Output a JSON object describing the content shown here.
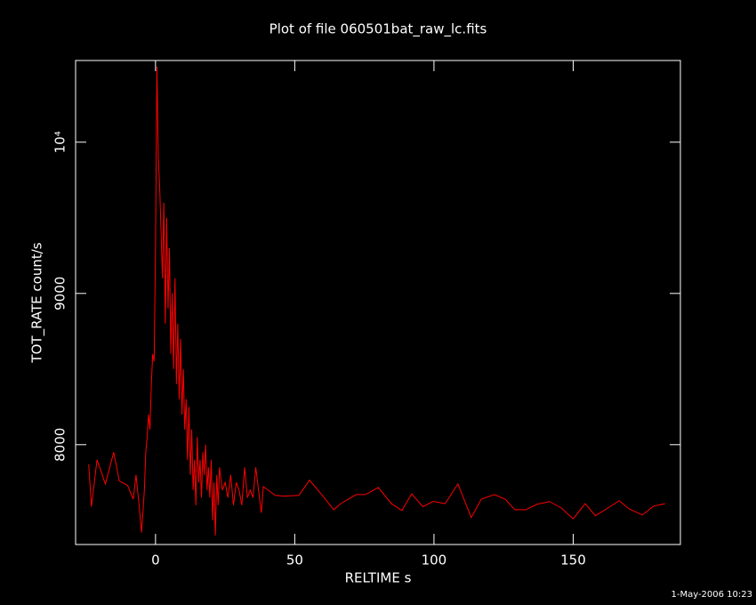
{
  "chart_data": {
    "type": "line",
    "title": "Plot of file 060501bat_raw_lc.fits",
    "x_label": "RELTIME  s",
    "y_label": "TOT_RATE  count/s",
    "footer": "1-May-2006 10:23",
    "xlim": [
      -28.7,
      188.5
    ],
    "ylim": [
      7340,
      10540
    ],
    "xticks": [
      0,
      50,
      100,
      150
    ],
    "yticks": [
      8000,
      9000,
      {
        "value": 10000,
        "label": "10⁴"
      }
    ],
    "series": [
      {
        "name": "TOT_RATE",
        "color": "#ff0000",
        "x": [
          -24,
          -23,
          -21,
          -18,
          -15,
          -13,
          -10,
          -8,
          -7,
          -6,
          -5,
          -4,
          -3.5,
          -3,
          -2.5,
          -2,
          -1.5,
          -1,
          -0.5,
          0,
          0.5,
          1,
          1.5,
          2,
          2.5,
          3,
          3.5,
          4,
          4.5,
          5,
          5.5,
          6,
          6.5,
          7,
          7.5,
          8,
          8.5,
          9,
          9.5,
          10,
          10.5,
          11,
          11.5,
          12,
          12.5,
          13,
          13.5,
          14,
          14.5,
          15,
          15.5,
          16,
          16.5,
          17,
          17.5,
          18,
          18.5,
          19,
          19.5,
          20,
          20.5,
          21,
          21.5,
          22,
          22.5,
          23,
          24,
          25,
          26,
          27,
          28,
          29,
          30,
          31,
          32,
          33,
          34,
          35,
          36,
          37,
          38,
          38.7,
          43,
          46,
          51.5,
          55.3,
          59.7,
          64,
          66.5,
          72,
          75.4,
          80,
          84.7,
          88.5,
          92,
          96,
          99.7,
          104,
          108.6,
          113.4,
          117,
          121.7,
          125.6,
          129,
          133,
          137,
          141.5,
          145.7,
          150,
          154.3,
          158,
          162,
          166.5,
          170,
          174.8,
          178.9,
          183
        ],
        "values": [
          7870,
          7590,
          7900,
          7740,
          7950,
          7760,
          7730,
          7640,
          7800,
          7620,
          7420,
          7700,
          7950,
          8050,
          8200,
          8100,
          8400,
          8600,
          8550,
          9300,
          10500,
          9900,
          9700,
          9400,
          9100,
          9600,
          8800,
          9500,
          8900,
          9300,
          8600,
          9000,
          8500,
          9100,
          8400,
          8800,
          8300,
          8700,
          8200,
          8500,
          8100,
          8300,
          7900,
          8250,
          7800,
          8100,
          7700,
          7900,
          7600,
          8050,
          7750,
          7900,
          7650,
          7950,
          7800,
          8000,
          7700,
          7850,
          7650,
          7900,
          7500,
          7750,
          7400,
          7800,
          7600,
          7850,
          7700,
          7750,
          7650,
          7800,
          7600,
          7750,
          7700,
          7600,
          7850,
          7650,
          7700,
          7650,
          7850,
          7700,
          7550,
          7723,
          7665,
          7660,
          7665,
          7765,
          7670,
          7570,
          7610,
          7670,
          7670,
          7717,
          7610,
          7565,
          7675,
          7590,
          7625,
          7610,
          7740,
          7518,
          7640,
          7670,
          7640,
          7570,
          7570,
          7606,
          7624,
          7582,
          7510,
          7610,
          7530,
          7576,
          7630,
          7576,
          7535,
          7594,
          7610
        ]
      }
    ]
  }
}
